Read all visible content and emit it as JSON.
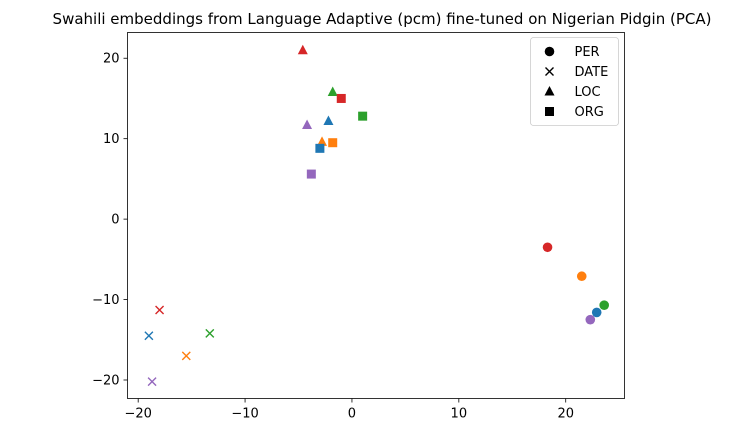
{
  "chart_data": {
    "type": "scatter",
    "title": "Swahili embeddings from Language Adaptive (pcm) fine-tuned on Nigerian Pidgin (PCA)",
    "xlabel": "",
    "ylabel": "",
    "xlim": [
      -21,
      25.5
    ],
    "ylim": [
      -22.3,
      23.2
    ],
    "xticks": [
      -20,
      -10,
      0,
      10,
      20
    ],
    "yticks": [
      -20,
      -10,
      0,
      10,
      20
    ],
    "grid": false,
    "legend": {
      "placement": "top-right",
      "entries": [
        {
          "label": "PER",
          "marker": "circle"
        },
        {
          "label": "DATE",
          "marker": "x"
        },
        {
          "label": "LOC",
          "marker": "triangle"
        },
        {
          "label": "ORG",
          "marker": "square"
        }
      ]
    },
    "colors": {
      "blue": "#1f77b4",
      "orange": "#ff7f0e",
      "green": "#2ca02c",
      "red": "#d62728",
      "purple": "#9467bd"
    },
    "points": [
      {
        "x": 18.3,
        "y": -3.5,
        "marker": "circle",
        "color": "red"
      },
      {
        "x": 21.5,
        "y": -7.1,
        "marker": "circle",
        "color": "orange"
      },
      {
        "x": 23.6,
        "y": -10.7,
        "marker": "circle",
        "color": "green"
      },
      {
        "x": 22.9,
        "y": -11.6,
        "marker": "circle",
        "color": "blue"
      },
      {
        "x": 22.3,
        "y": -12.5,
        "marker": "circle",
        "color": "purple"
      },
      {
        "x": -18.0,
        "y": -11.3,
        "marker": "x",
        "color": "red"
      },
      {
        "x": -19.0,
        "y": -14.5,
        "marker": "x",
        "color": "blue"
      },
      {
        "x": -13.3,
        "y": -14.2,
        "marker": "x",
        "color": "green"
      },
      {
        "x": -15.5,
        "y": -17.0,
        "marker": "x",
        "color": "orange"
      },
      {
        "x": -18.7,
        "y": -20.2,
        "marker": "x",
        "color": "purple"
      },
      {
        "x": -4.6,
        "y": 21.0,
        "marker": "triangle",
        "color": "red"
      },
      {
        "x": -1.8,
        "y": 15.8,
        "marker": "triangle",
        "color": "green"
      },
      {
        "x": -2.2,
        "y": 12.2,
        "marker": "triangle",
        "color": "blue"
      },
      {
        "x": -4.2,
        "y": 11.7,
        "marker": "triangle",
        "color": "purple"
      },
      {
        "x": -2.8,
        "y": 9.6,
        "marker": "triangle",
        "color": "orange"
      },
      {
        "x": -1.0,
        "y": 15.0,
        "marker": "square",
        "color": "red"
      },
      {
        "x": 1.0,
        "y": 12.8,
        "marker": "square",
        "color": "green"
      },
      {
        "x": -1.8,
        "y": 9.5,
        "marker": "square",
        "color": "orange"
      },
      {
        "x": -3.0,
        "y": 8.8,
        "marker": "square",
        "color": "blue"
      },
      {
        "x": -3.8,
        "y": 5.6,
        "marker": "square",
        "color": "purple"
      }
    ]
  }
}
